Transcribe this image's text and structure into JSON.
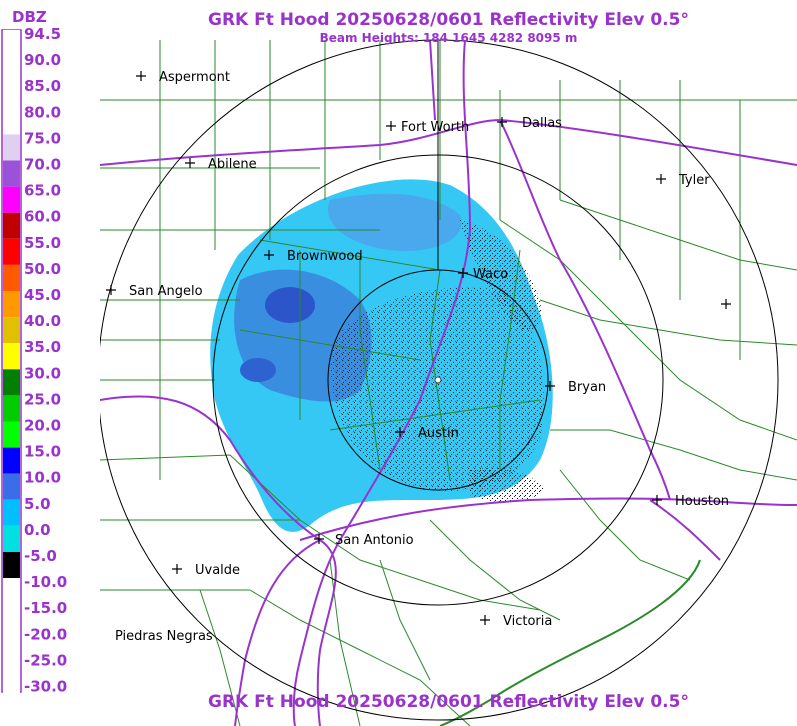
{
  "title": "GRK Ft Hood 20250628/0601 Reflectivity Elev 0.5°",
  "subtitle": "Beam Heights: 184 1645 4282 8095 m",
  "bottom_title": "GRK Ft Hood 20250628/0601 Reflectivity Elev 0.5°",
  "legend": {
    "unit": "DBZ",
    "entries": [
      {
        "label": "94.5",
        "color": "#ffffff"
      },
      {
        "label": "90.0",
        "color": "#ffffff"
      },
      {
        "label": "85.0",
        "color": "#ffffff"
      },
      {
        "label": "80.0",
        "color": "#ffffff"
      },
      {
        "label": "75.0",
        "color": "#e0d0f0"
      },
      {
        "label": "70.0",
        "color": "#9a52d8"
      },
      {
        "label": "65.0",
        "color": "#ff00ff"
      },
      {
        "label": "60.0",
        "color": "#c00000"
      },
      {
        "label": "55.0",
        "color": "#ff0000"
      },
      {
        "label": "50.0",
        "color": "#ff5a00"
      },
      {
        "label": "45.0",
        "color": "#ff9900"
      },
      {
        "label": "40.0",
        "color": "#e0c000"
      },
      {
        "label": "35.0",
        "color": "#ffff00"
      },
      {
        "label": "30.0",
        "color": "#007f00"
      },
      {
        "label": "25.0",
        "color": "#00cc00"
      },
      {
        "label": "20.0",
        "color": "#00ff00"
      },
      {
        "label": "15.0",
        "color": "#0000ff"
      },
      {
        "label": "10.0",
        "color": "#3a6ee8"
      },
      {
        "label": "5.0",
        "color": "#00bfff"
      },
      {
        "label": "0.0",
        "color": "#00e0e0"
      },
      {
        "label": "-5.0",
        "color": "#000000"
      },
      {
        "label": "-10.0",
        "color": "#ffffff"
      },
      {
        "label": "-15.0",
        "color": "#ffffff"
      },
      {
        "label": "-20.0",
        "color": "#ffffff"
      },
      {
        "label": "-25.0",
        "color": "#ffffff"
      },
      {
        "label": "-30.0",
        "color": "#ffffff"
      }
    ]
  },
  "cities": [
    {
      "name": "Aspermont"
    },
    {
      "name": "Fort Worth"
    },
    {
      "name": "Dallas"
    },
    {
      "name": "Abilene"
    },
    {
      "name": "Tyler"
    },
    {
      "name": "Brownwood"
    },
    {
      "name": "Waco"
    },
    {
      "name": "San Angelo"
    },
    {
      "name": "Bryan"
    },
    {
      "name": "Austin"
    },
    {
      "name": "Houston"
    },
    {
      "name": "San Antonio"
    },
    {
      "name": "Uvalde"
    },
    {
      "name": "Victoria"
    },
    {
      "name": "Piedras Negras"
    },
    {
      "name": ""
    }
  ],
  "colors": {
    "title": "#9933cc",
    "county_lines": "#2a8a2a",
    "highways": "#9933cc",
    "range_rings": "#000000",
    "echo_light": "#35c8f5",
    "echo_medium": "#3a8ee0",
    "echo_dark": "#2b55c8"
  }
}
